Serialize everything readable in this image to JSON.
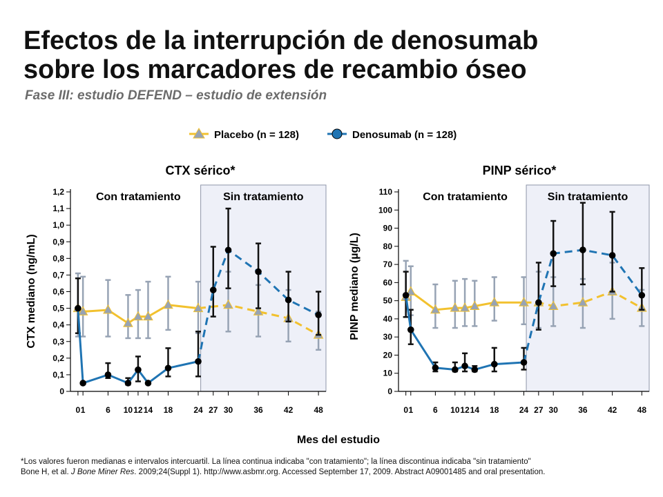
{
  "title_line1": "Efectos de la interrupción de denosumab",
  "title_line2": "sobre los marcadores de recambio óseo",
  "subtitle": "Fase III: estudio DEFEND – estudio de extensión",
  "colors": {
    "placebo": "#f2c12e",
    "denosumab": "#1f74b3",
    "error_placebo": "#97a3b4",
    "error_denosumab": "#111111",
    "shade_fill": "#eef0f8",
    "shade_border": "#8e95a8"
  },
  "chart_data": [
    {
      "type": "line",
      "title": "CTX sérico*",
      "ylabel": "CTX mediano (ng/mL)",
      "xlabel": "Mes del estudio",
      "x_ticks": [
        0,
        1,
        6,
        10,
        12,
        14,
        18,
        24,
        27,
        30,
        36,
        42,
        48
      ],
      "y_ticks": [
        0,
        0.1,
        0.2,
        0.3,
        0.4,
        0.5,
        0.6,
        0.7,
        0.8,
        0.9,
        1.0,
        1.1,
        1.2
      ],
      "y_tick_labels": [
        "0",
        "0,1",
        "0,2",
        "0,3",
        "0,4",
        "0,5",
        "0,6",
        "0,7",
        "0,8",
        "0,9",
        "1,0",
        "1,1",
        "1,2"
      ],
      "xlim": [
        -1.5,
        49.5
      ],
      "ylim": [
        0,
        1.2
      ],
      "region_labels": [
        "Con tratamiento",
        "Sin tratamiento"
      ],
      "off_treatment_from": 24.5,
      "series": [
        {
          "name": "Placebo (n = 128)",
          "x": [
            0,
            1,
            6,
            10,
            12,
            14,
            18,
            24,
            30,
            36,
            42,
            48
          ],
          "y": [
            0.5,
            0.48,
            0.49,
            0.41,
            0.45,
            0.45,
            0.52,
            0.5,
            0.52,
            0.48,
            0.44,
            0.34
          ],
          "lower": [
            0.33,
            0.33,
            0.33,
            0.32,
            0.32,
            0.32,
            0.37,
            0.35,
            0.36,
            0.33,
            0.3,
            0.25
          ],
          "upper": [
            0.71,
            0.69,
            0.67,
            0.58,
            0.61,
            0.66,
            0.69,
            0.66,
            0.72,
            0.64,
            0.61,
            0.48
          ],
          "solid_until": 24
        },
        {
          "name": "Denosumab (n = 128)",
          "x": [
            0,
            1,
            6,
            10,
            12,
            14,
            18,
            24,
            27,
            30,
            36,
            42,
            48
          ],
          "y": [
            0.5,
            0.05,
            0.1,
            0.05,
            0.13,
            0.05,
            0.14,
            0.18,
            0.61,
            0.85,
            0.72,
            0.55,
            0.46
          ],
          "lower": [
            0.35,
            0.05,
            0.08,
            0.04,
            0.06,
            0.05,
            0.09,
            0.09,
            0.45,
            0.62,
            0.5,
            0.42,
            0.34
          ],
          "upper": [
            0.68,
            0.05,
            0.17,
            0.08,
            0.21,
            0.05,
            0.26,
            0.36,
            0.87,
            1.1,
            0.89,
            0.72,
            0.6
          ],
          "solid_until": 24
        }
      ]
    },
    {
      "type": "line",
      "title": "PINP sérico*",
      "ylabel": "PINP mediano (µg/L)",
      "xlabel": "Mes del estudio",
      "x_ticks": [
        0,
        1,
        6,
        10,
        12,
        14,
        18,
        24,
        27,
        30,
        36,
        42,
        48
      ],
      "y_ticks": [
        0,
        10,
        20,
        30,
        40,
        50,
        60,
        70,
        80,
        90,
        100,
        110
      ],
      "y_tick_labels": [
        "0",
        "10",
        "20",
        "30",
        "40",
        "50",
        "60",
        "70",
        "80",
        "90",
        "100",
        "110"
      ],
      "xlim": [
        -1.5,
        49.5
      ],
      "ylim": [
        0,
        110
      ],
      "region_labels": [
        "Con tratamiento",
        "Sin tratamiento"
      ],
      "off_treatment_from": 24.5,
      "series": [
        {
          "name": "Placebo (n = 128)",
          "x": [
            0,
            1,
            6,
            10,
            12,
            14,
            18,
            24,
            27,
            30,
            36,
            42,
            48
          ],
          "y": [
            52,
            55,
            45,
            46,
            46,
            47,
            49,
            49,
            49,
            47,
            49,
            55,
            46
          ],
          "lower": [
            41,
            42,
            35,
            35,
            36,
            36,
            39,
            37,
            35,
            36,
            35,
            40,
            36
          ],
          "upper": [
            72,
            69,
            59,
            61,
            62,
            61,
            63,
            63,
            66,
            63,
            62,
            71,
            56
          ],
          "solid_until": 24
        },
        {
          "name": "Denosumab (n = 128)",
          "x": [
            0,
            1,
            6,
            10,
            12,
            14,
            18,
            24,
            27,
            30,
            36,
            42,
            48
          ],
          "y": [
            53,
            34,
            13,
            12,
            14,
            12,
            15,
            16,
            49,
            76,
            78,
            75,
            53
          ],
          "lower": [
            41,
            26,
            11,
            11,
            11,
            11,
            11,
            12,
            34,
            58,
            59,
            55,
            45
          ],
          "upper": [
            66,
            45,
            16,
            16,
            21,
            14,
            24,
            24,
            71,
            94,
            104,
            99,
            68
          ],
          "solid_until": 24
        }
      ]
    }
  ],
  "legend": {
    "placebo_label": "Placebo (n = 128)",
    "denosumab_label": "Denosumab (n = 128)"
  },
  "footnote_line1": "*Los valores fueron medianas e intervalos intercuartil. La línea continua indicaba \"con tratamiento\"; la línea discontinua indicaba \"sin tratamiento\"",
  "footnote_line2_prefix": "Bone H, et al. ",
  "footnote_journal": "J Bone Miner Res",
  "footnote_line2_suffix": ". 2009;24(Suppl 1). http://www.asbmr.org.  Accessed September 17, 2009. Abstract A09001485  and oral presentation."
}
